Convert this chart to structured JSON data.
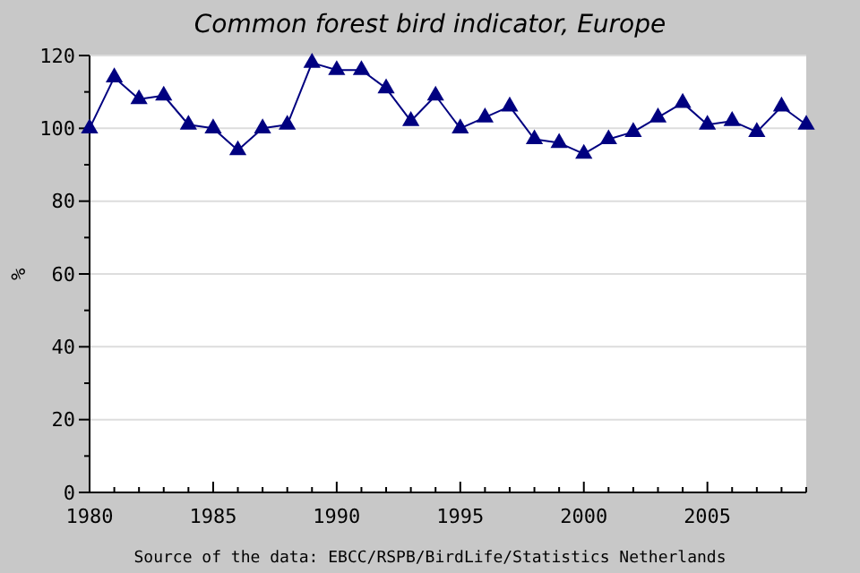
{
  "chart_data": {
    "type": "line",
    "title": "Common forest bird indicator, Europe",
    "ylabel": "%",
    "annotations": [
      "Source of the data: EBCC/RSPB/BirdLife/Statistics Netherlands"
    ],
    "x": [
      1980,
      1981,
      1982,
      1983,
      1984,
      1985,
      1986,
      1987,
      1988,
      1989,
      1990,
      1991,
      1992,
      1993,
      1994,
      1995,
      1996,
      1997,
      1998,
      1999,
      2000,
      2001,
      2002,
      2003,
      2004,
      2005,
      2006,
      2007,
      2008,
      2009
    ],
    "series": [
      {
        "color": "#000080",
        "values": [
          100,
          114,
          108,
          109,
          101,
          100,
          94,
          100,
          101,
          118,
          116,
          116,
          111,
          102,
          109,
          100,
          103,
          106,
          97,
          96,
          93,
          97,
          99,
          103,
          107,
          101,
          102,
          99,
          106,
          101
        ]
      }
    ],
    "xlim": [
      1980,
      2009
    ],
    "xticks": [
      1980,
      {
        "value": 1981,
        "label": null
      },
      {
        "value": 1982,
        "label": null
      },
      {
        "value": 1983,
        "label": null
      },
      {
        "value": 1984,
        "label": null
      },
      1985,
      {
        "value": 1986,
        "label": null
      },
      {
        "value": 1987,
        "label": null
      },
      {
        "value": 1988,
        "label": null
      },
      {
        "value": 1989,
        "label": null
      },
      1990,
      {
        "value": 1991,
        "label": null
      },
      {
        "value": 1992,
        "label": null
      },
      {
        "value": 1993,
        "label": null
      },
      {
        "value": 1994,
        "label": null
      },
      1995,
      {
        "value": 1996,
        "label": null
      },
      {
        "value": 1997,
        "label": null
      },
      {
        "value": 1998,
        "label": null
      },
      {
        "value": 1999,
        "label": null
      },
      2000,
      {
        "value": 2001,
        "label": null
      },
      {
        "value": 2002,
        "label": null
      },
      {
        "value": 2003,
        "label": null
      },
      {
        "value": 2004,
        "label": null
      },
      2005,
      {
        "value": 2006,
        "label": null
      },
      {
        "value": 2007,
        "label": null
      },
      {
        "value": 2008,
        "label": null
      },
      {
        "value": 2009,
        "label": null
      }
    ],
    "ylim": [
      0,
      120
    ],
    "yticks": [
      0,
      {
        "value": 10,
        "label": null
      },
      20,
      {
        "value": 30,
        "label": null
      },
      40,
      {
        "value": 50,
        "label": null
      },
      60,
      {
        "value": 70,
        "label": null
      },
      80,
      {
        "value": 90,
        "label": null
      },
      100,
      {
        "value": 110,
        "label": null
      },
      120
    ],
    "grid": "y",
    "marker": "triangle",
    "line_style": "solid"
  }
}
